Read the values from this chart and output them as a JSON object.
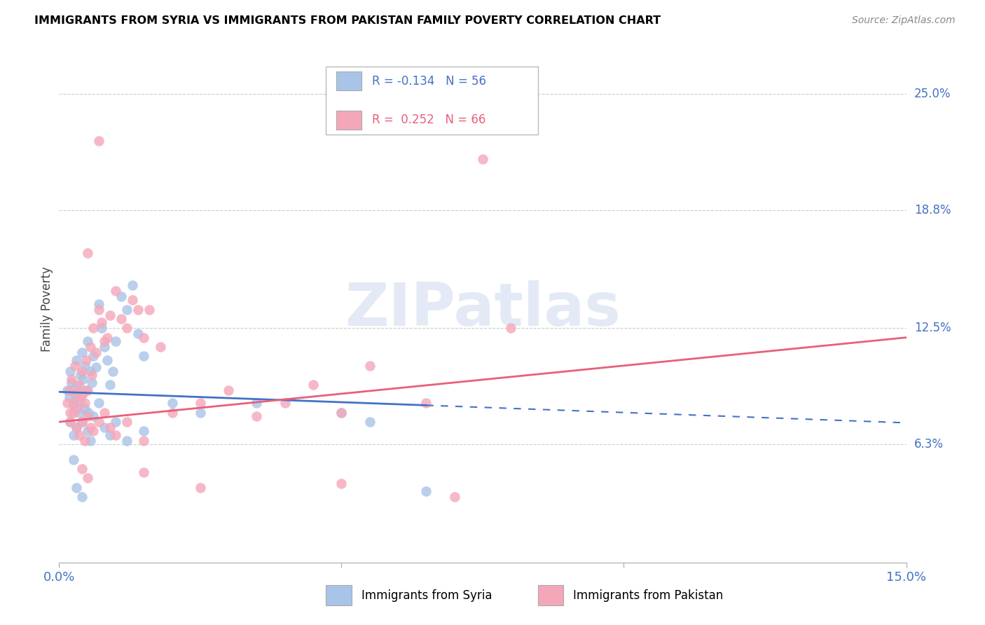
{
  "title": "IMMIGRANTS FROM SYRIA VS IMMIGRANTS FROM PAKISTAN FAMILY POVERTY CORRELATION CHART",
  "source": "Source: ZipAtlas.com",
  "ylabel": "Family Poverty",
  "y_ticks": [
    6.3,
    12.5,
    18.8,
    25.0
  ],
  "y_tick_labels": [
    "6.3%",
    "12.5%",
    "18.8%",
    "25.0%"
  ],
  "xlim": [
    0.0,
    15.0
  ],
  "ylim": [
    0.0,
    27.0
  ],
  "legend_syria_r": "-0.134",
  "legend_syria_n": "56",
  "legend_pakistan_r": "0.252",
  "legend_pakistan_n": "66",
  "legend_label_syria": "Immigrants from Syria",
  "legend_label_pakistan": "Immigrants from Pakistan",
  "syria_color": "#a8c4e8",
  "pakistan_color": "#f4a7b9",
  "syria_line_color": "#4472c4",
  "pakistan_line_color": "#e8607a",
  "syria_slope": -0.11,
  "syria_intercept": 9.1,
  "pakistan_slope": 0.3,
  "pakistan_intercept": 7.5,
  "syria_solid_end": 6.5,
  "syria_scatter": [
    [
      0.15,
      9.2
    ],
    [
      0.18,
      8.8
    ],
    [
      0.2,
      10.2
    ],
    [
      0.22,
      9.6
    ],
    [
      0.25,
      8.4
    ],
    [
      0.28,
      9.0
    ],
    [
      0.3,
      10.8
    ],
    [
      0.32,
      9.4
    ],
    [
      0.35,
      8.6
    ],
    [
      0.38,
      10.0
    ],
    [
      0.4,
      11.2
    ],
    [
      0.42,
      9.8
    ],
    [
      0.45,
      10.5
    ],
    [
      0.48,
      9.2
    ],
    [
      0.5,
      11.8
    ],
    [
      0.52,
      8.0
    ],
    [
      0.55,
      10.2
    ],
    [
      0.58,
      9.6
    ],
    [
      0.6,
      11.0
    ],
    [
      0.65,
      10.4
    ],
    [
      0.7,
      13.8
    ],
    [
      0.75,
      12.5
    ],
    [
      0.8,
      11.5
    ],
    [
      0.85,
      10.8
    ],
    [
      0.9,
      9.5
    ],
    [
      0.95,
      10.2
    ],
    [
      1.0,
      11.8
    ],
    [
      1.1,
      14.2
    ],
    [
      1.2,
      13.5
    ],
    [
      1.3,
      14.8
    ],
    [
      1.4,
      12.2
    ],
    [
      1.5,
      11.0
    ],
    [
      0.2,
      7.5
    ],
    [
      0.25,
      6.8
    ],
    [
      0.3,
      7.2
    ],
    [
      0.35,
      8.0
    ],
    [
      0.4,
      7.5
    ],
    [
      0.45,
      8.2
    ],
    [
      0.5,
      7.0
    ],
    [
      0.55,
      6.5
    ],
    [
      0.6,
      7.8
    ],
    [
      0.7,
      8.5
    ],
    [
      0.8,
      7.2
    ],
    [
      0.9,
      6.8
    ],
    [
      1.0,
      7.5
    ],
    [
      1.2,
      6.5
    ],
    [
      1.5,
      7.0
    ],
    [
      2.0,
      8.5
    ],
    [
      2.5,
      8.0
    ],
    [
      3.5,
      8.5
    ],
    [
      5.0,
      8.0
    ],
    [
      5.5,
      7.5
    ],
    [
      0.3,
      4.0
    ],
    [
      0.4,
      3.5
    ],
    [
      6.5,
      3.8
    ],
    [
      0.25,
      5.5
    ]
  ],
  "pakistan_scatter": [
    [
      0.15,
      8.5
    ],
    [
      0.18,
      9.2
    ],
    [
      0.2,
      8.0
    ],
    [
      0.22,
      9.8
    ],
    [
      0.25,
      8.5
    ],
    [
      0.28,
      10.5
    ],
    [
      0.3,
      9.0
    ],
    [
      0.32,
      8.2
    ],
    [
      0.35,
      9.5
    ],
    [
      0.38,
      8.8
    ],
    [
      0.4,
      10.2
    ],
    [
      0.42,
      9.0
    ],
    [
      0.45,
      8.5
    ],
    [
      0.48,
      10.8
    ],
    [
      0.5,
      9.2
    ],
    [
      0.55,
      11.5
    ],
    [
      0.58,
      10.0
    ],
    [
      0.6,
      12.5
    ],
    [
      0.65,
      11.2
    ],
    [
      0.7,
      13.5
    ],
    [
      0.75,
      12.8
    ],
    [
      0.8,
      11.8
    ],
    [
      0.85,
      12.0
    ],
    [
      0.9,
      13.2
    ],
    [
      1.0,
      14.5
    ],
    [
      1.1,
      13.0
    ],
    [
      1.2,
      12.5
    ],
    [
      1.3,
      14.0
    ],
    [
      1.4,
      13.5
    ],
    [
      1.5,
      12.0
    ],
    [
      1.6,
      13.5
    ],
    [
      1.8,
      11.5
    ],
    [
      0.2,
      7.5
    ],
    [
      0.25,
      8.0
    ],
    [
      0.3,
      7.2
    ],
    [
      0.35,
      6.8
    ],
    [
      0.4,
      7.5
    ],
    [
      0.45,
      6.5
    ],
    [
      0.5,
      7.8
    ],
    [
      0.55,
      7.2
    ],
    [
      0.6,
      7.0
    ],
    [
      0.7,
      7.5
    ],
    [
      0.8,
      8.0
    ],
    [
      0.9,
      7.2
    ],
    [
      1.0,
      6.8
    ],
    [
      1.2,
      7.5
    ],
    [
      1.5,
      6.5
    ],
    [
      2.0,
      8.0
    ],
    [
      2.5,
      8.5
    ],
    [
      3.0,
      9.2
    ],
    [
      3.5,
      7.8
    ],
    [
      4.0,
      8.5
    ],
    [
      4.5,
      9.5
    ],
    [
      5.0,
      8.0
    ],
    [
      5.5,
      10.5
    ],
    [
      6.5,
      8.5
    ],
    [
      8.0,
      12.5
    ],
    [
      0.4,
      5.0
    ],
    [
      0.5,
      4.5
    ],
    [
      2.5,
      4.0
    ],
    [
      5.0,
      4.2
    ],
    [
      7.0,
      3.5
    ],
    [
      7.5,
      21.5
    ],
    [
      0.5,
      16.5
    ],
    [
      0.7,
      22.5
    ],
    [
      1.5,
      4.8
    ]
  ]
}
